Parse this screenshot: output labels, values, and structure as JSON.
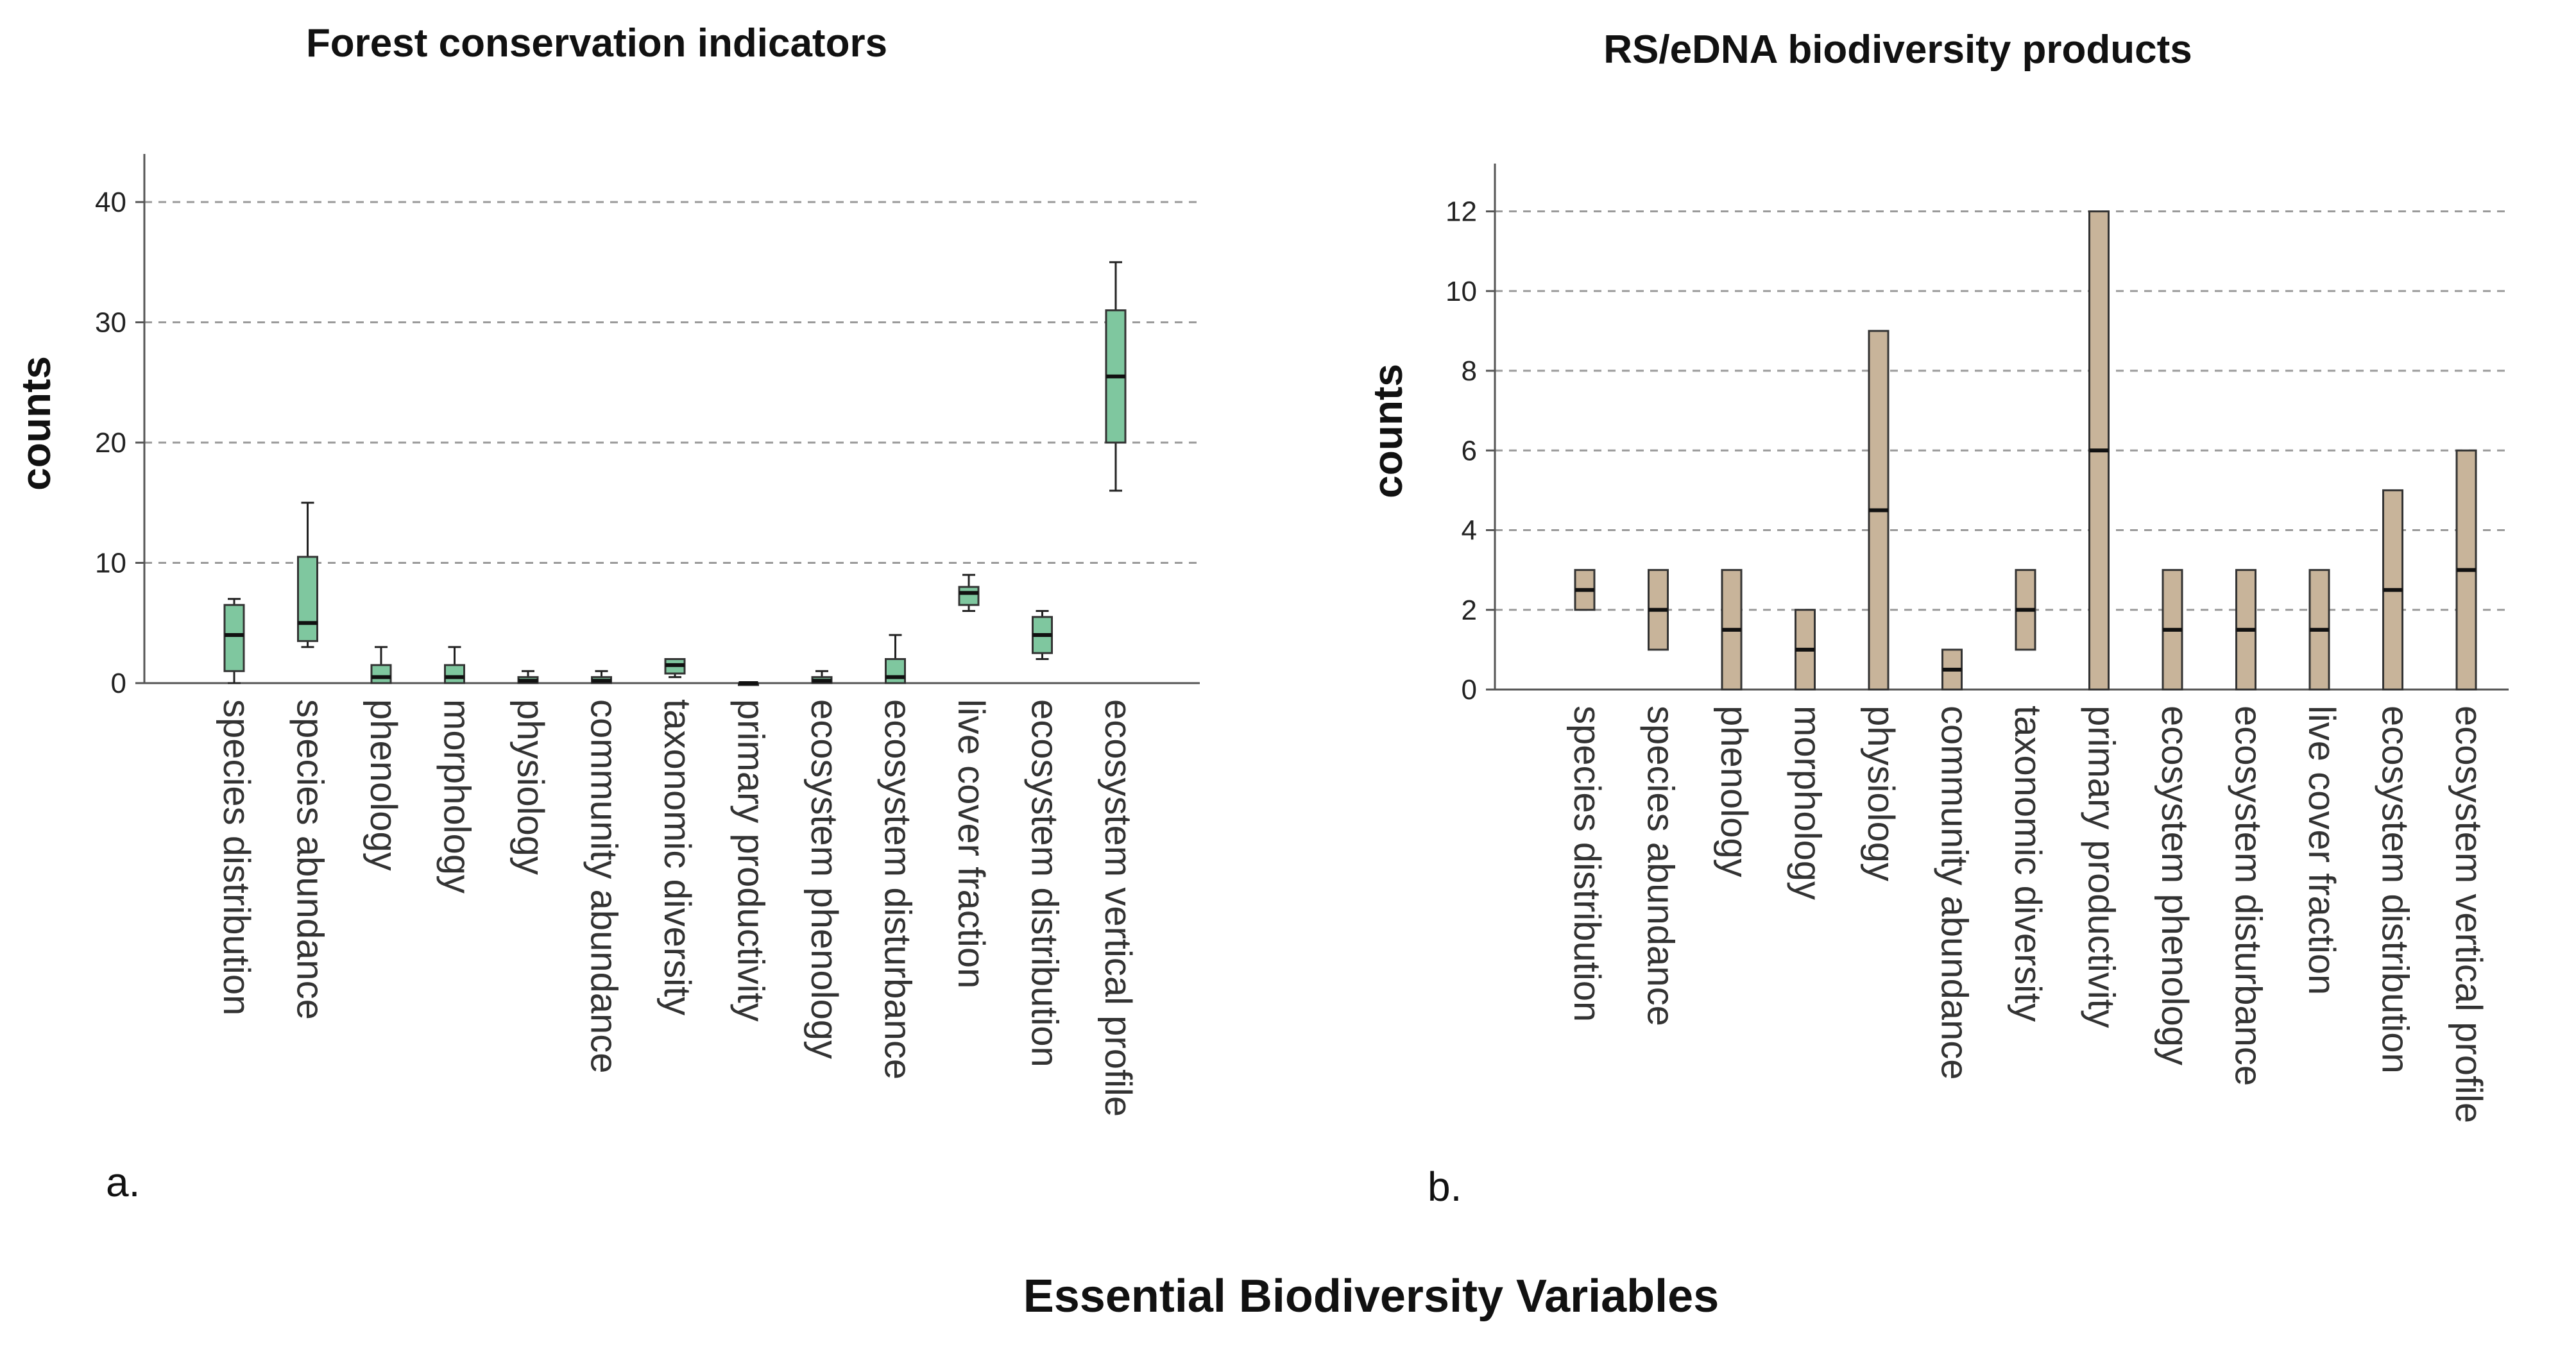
{
  "xlabel": "Essential Biodiversity Variables",
  "chart_data": [
    {
      "type": "box",
      "panel_label": "a.",
      "title": "Forest conservation indicators",
      "ylabel": "counts",
      "ylim": [
        0,
        44
      ],
      "yticks": [
        0,
        10,
        20,
        30,
        40
      ],
      "grid": "horizontal-dashed",
      "color": "#7fc79f",
      "categories": [
        "species distribution",
        "species abundance",
        "phenology",
        "morphology",
        "physiology",
        "community abundance",
        "taxonomic diversity",
        "primary productivity",
        "ecosystem phenology",
        "ecosystem disturbance",
        "live cover fraction",
        "ecosystem distribution",
        "ecosystem vertical profile"
      ],
      "boxes": [
        {
          "min": 0,
          "q1": 1,
          "median": 4,
          "q3": 6.5,
          "max": 7
        },
        {
          "min": 3,
          "q1": 3.5,
          "median": 5,
          "q3": 10.5,
          "max": 15
        },
        {
          "min": 0,
          "q1": 0,
          "median": 0.5,
          "q3": 1.5,
          "max": 3
        },
        {
          "min": 0,
          "q1": 0,
          "median": 0.5,
          "q3": 1.5,
          "max": 3
        },
        {
          "min": 0,
          "q1": 0,
          "median": 0.2,
          "q3": 0.5,
          "max": 1
        },
        {
          "min": 0,
          "q1": 0,
          "median": 0.2,
          "q3": 0.5,
          "max": 1
        },
        {
          "min": 0.5,
          "q1": 0.8,
          "median": 1.5,
          "q3": 2,
          "max": 2
        },
        {
          "min": 0,
          "q1": 0,
          "median": 0,
          "q3": 0,
          "max": 0
        },
        {
          "min": 0,
          "q1": 0,
          "median": 0.2,
          "q3": 0.5,
          "max": 1
        },
        {
          "min": 0,
          "q1": 0,
          "median": 0.5,
          "q3": 2,
          "max": 4
        },
        {
          "min": 6,
          "q1": 6.5,
          "median": 7.5,
          "q3": 8,
          "max": 9
        },
        {
          "min": 2,
          "q1": 2.5,
          "median": 4,
          "q3": 5.5,
          "max": 6
        },
        {
          "min": 16,
          "q1": 20,
          "median": 25.5,
          "q3": 31,
          "max": 35
        }
      ]
    },
    {
      "type": "box",
      "panel_label": "b.",
      "title": "RS/eDNA biodiversity products",
      "ylabel": "counts",
      "ylim": [
        0,
        13.2
      ],
      "yticks": [
        0,
        2,
        4,
        6,
        8,
        10,
        12
      ],
      "grid": "horizontal-dashed",
      "color": "#c8b49a",
      "categories": [
        "species distribution",
        "species abundance",
        "phenology",
        "morphology",
        "physiology",
        "community abundance",
        "taxonomic diversity",
        "primary productivity",
        "ecosystem phenology",
        "ecosystem disturbance",
        "live cover fraction",
        "ecosystem distribution",
        "ecosystem vertical profile"
      ],
      "boxes": [
        {
          "min": 2,
          "q1": 2,
          "median": 2.5,
          "q3": 3,
          "max": 3
        },
        {
          "min": 1,
          "q1": 1,
          "median": 2,
          "q3": 3,
          "max": 3
        },
        {
          "min": 0,
          "q1": 0,
          "median": 1.5,
          "q3": 3,
          "max": 3
        },
        {
          "min": 0,
          "q1": 0,
          "median": 1,
          "q3": 2,
          "max": 2
        },
        {
          "min": 0,
          "q1": 0,
          "median": 4.5,
          "q3": 9,
          "max": 9
        },
        {
          "min": 0,
          "q1": 0,
          "median": 0.5,
          "q3": 1,
          "max": 1
        },
        {
          "min": 1,
          "q1": 1,
          "median": 2,
          "q3": 3,
          "max": 3
        },
        {
          "min": 0,
          "q1": 0,
          "median": 6,
          "q3": 12,
          "max": 12
        },
        {
          "min": 0,
          "q1": 0,
          "median": 1.5,
          "q3": 3,
          "max": 3
        },
        {
          "min": 0,
          "q1": 0,
          "median": 1.5,
          "q3": 3,
          "max": 3
        },
        {
          "min": 0,
          "q1": 0,
          "median": 1.5,
          "q3": 3,
          "max": 3
        },
        {
          "min": 0,
          "q1": 0,
          "median": 2.5,
          "q3": 5,
          "max": 5
        },
        {
          "min": 0,
          "q1": 0,
          "median": 3,
          "q3": 6,
          "max": 6
        }
      ]
    }
  ]
}
